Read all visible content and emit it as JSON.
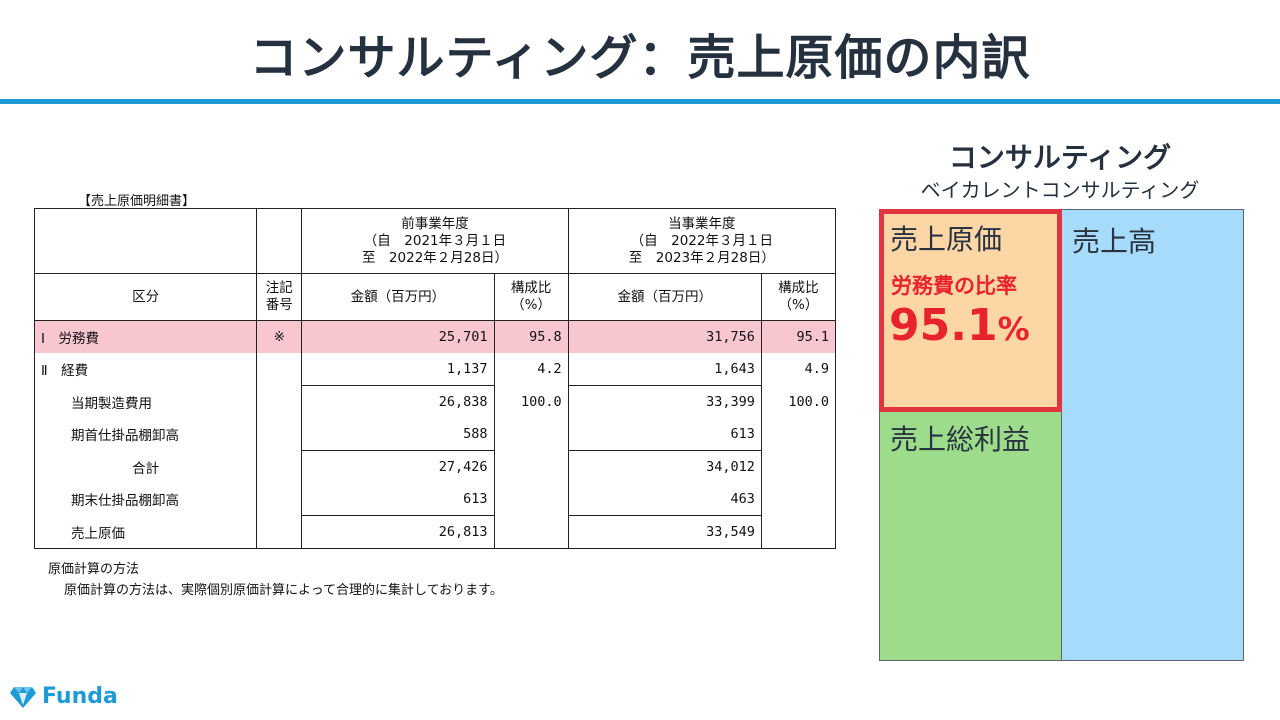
{
  "title": "コンサルティング：売上原価の内訳",
  "table": {
    "caption": "【売上原価明細書】",
    "prev_period": [
      "前事業年度",
      "（自　2021年３月１日",
      "至　2022年２月28日）"
    ],
    "curr_period": [
      "当事業年度",
      "（自　2022年３月１日",
      "至　2023年２月28日）"
    ],
    "col_kubun": "区分",
    "col_note": "注記番号",
    "col_amount": "金額（百万円）",
    "col_ratio": "構成比（%）",
    "rows": [
      {
        "label": "Ⅰ　労務費",
        "note": "※",
        "prev": "25,701",
        "prev_ratio": "95.8",
        "curr": "31,756",
        "curr_ratio": "95.1"
      },
      {
        "label": "Ⅱ　経費",
        "prev": "1,137",
        "prev_ratio": "4.2",
        "curr": "1,643",
        "curr_ratio": "4.9"
      },
      {
        "label": "当期製造費用",
        "prev": "26,838",
        "prev_ratio": "100.0",
        "curr": "33,399",
        "curr_ratio": "100.0"
      },
      {
        "label": "期首仕掛品棚卸高",
        "prev": "588",
        "curr": "613"
      },
      {
        "label": "合計",
        "prev": "27,426",
        "curr": "34,012"
      },
      {
        "label": "期末仕掛品棚卸高",
        "prev": "613",
        "curr": "463"
      },
      {
        "label": "売上原価",
        "prev": "26,813",
        "curr": "33,549"
      }
    ],
    "note_title": "原価計算の方法",
    "note_body": "原価計算の方法は、実際個別原価計算によって合理的に集計しております。"
  },
  "right": {
    "title": "コンサルティング",
    "subtitle": "ベイカレントコンサルティング",
    "cost_label": "売上原価",
    "sales_label": "売上高",
    "gross_label": "売上総利益",
    "ratio_label": "労務費の比率",
    "ratio_value": "95.1",
    "ratio_unit": "%",
    "colors": {
      "sales": "#a6dbfc",
      "cost": "#fdd6a6",
      "gross": "#9ddc8a",
      "highlight": "#e0343f"
    }
  },
  "brand": {
    "name": "Funda",
    "icon": "diamond-logo-icon",
    "color": "#1e9ad6"
  }
}
